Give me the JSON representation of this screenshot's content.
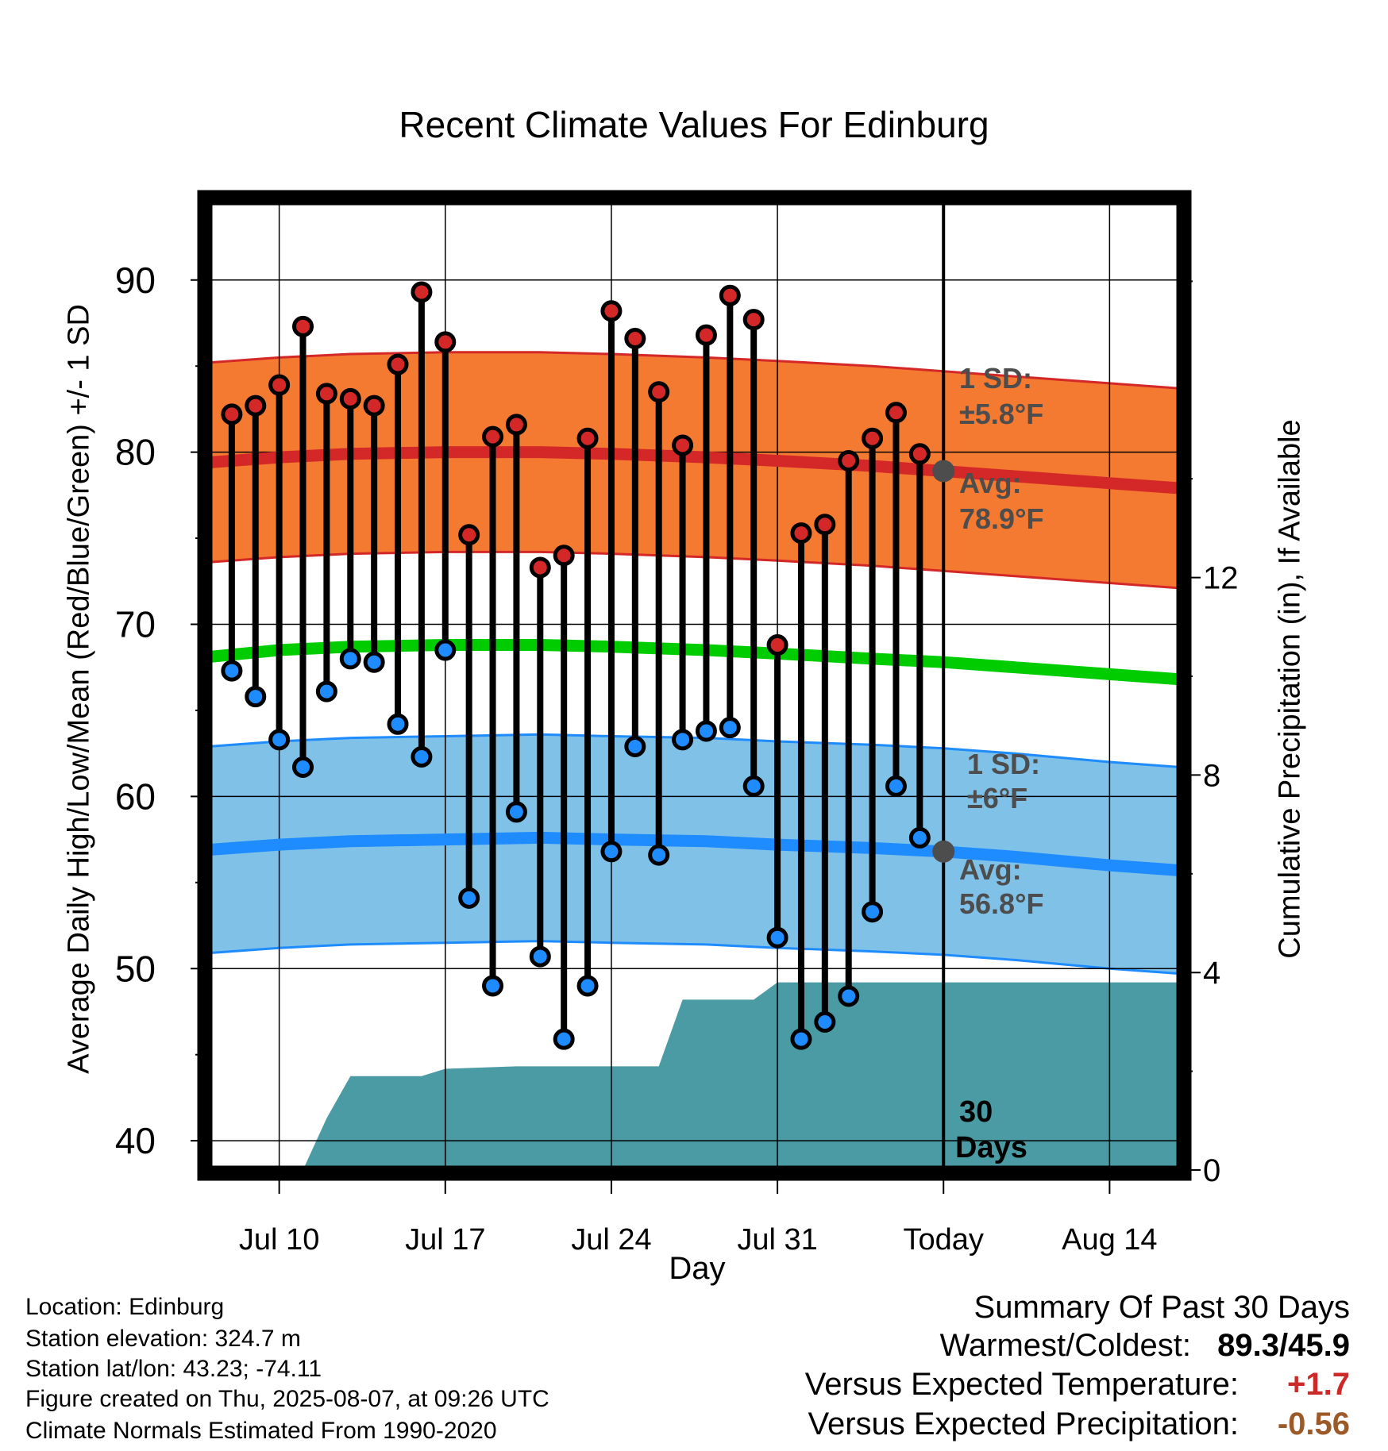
{
  "chart_data": {
    "type": "line",
    "title": "Recent Climate Values For Edinburg",
    "xlabel": "Day",
    "ylabel": "Average Daily High/Low/Mean (Red/Blue/Green) +/- 1 SD",
    "y2label": "Cumulative Precipitation (in), If Available",
    "ylim": [
      38.3,
      94.6
    ],
    "y2lim": [
      0,
      19.63
    ],
    "yticks": [
      "40",
      "50",
      "60",
      "70",
      "80",
      "90"
    ],
    "y2ticks": [
      "0",
      "4",
      "8",
      "12"
    ],
    "xlim": [
      "2025-07-07",
      "2025-08-17"
    ],
    "xticks": [
      {
        "date": "2025-07-10",
        "label": "Jul 10"
      },
      {
        "date": "2025-07-17",
        "label": "Jul 17"
      },
      {
        "date": "2025-07-24",
        "label": "Jul 24"
      },
      {
        "date": "2025-07-31",
        "label": "Jul 31"
      },
      {
        "date": "2025-08-07",
        "label": "Today"
      },
      {
        "date": "2025-08-14",
        "label": "Aug 14"
      }
    ],
    "grid": true,
    "today": "2025-08-07",
    "colors": {
      "high_band": "#f47a31",
      "high_line": "#d42828",
      "mean_line": "#00cc00",
      "low_band": "#80c1e8",
      "low_line": "#1e8cff",
      "precip": "#4a9ba3",
      "avg_marker": "#4d4d4d",
      "annotation": "#4d4d4d"
    },
    "observed": [
      {
        "date": "2025-07-08",
        "high": 82.2,
        "low": 67.3
      },
      {
        "date": "2025-07-09",
        "high": 82.7,
        "low": 65.8
      },
      {
        "date": "2025-07-10",
        "high": 83.9,
        "low": 63.3
      },
      {
        "date": "2025-07-11",
        "high": 87.3,
        "low": 61.7
      },
      {
        "date": "2025-07-12",
        "high": 83.4,
        "low": 66.1
      },
      {
        "date": "2025-07-13",
        "high": 83.1,
        "low": 68.0
      },
      {
        "date": "2025-07-14",
        "high": 82.7,
        "low": 67.8
      },
      {
        "date": "2025-07-15",
        "high": 85.1,
        "low": 64.2
      },
      {
        "date": "2025-07-16",
        "high": 89.3,
        "low": 62.3
      },
      {
        "date": "2025-07-17",
        "high": 86.4,
        "low": 68.5
      },
      {
        "date": "2025-07-18",
        "high": 75.2,
        "low": 54.1
      },
      {
        "date": "2025-07-19",
        "high": 80.9,
        "low": 49.0
      },
      {
        "date": "2025-07-20",
        "high": 81.6,
        "low": 59.1
      },
      {
        "date": "2025-07-21",
        "high": 73.3,
        "low": 50.7
      },
      {
        "date": "2025-07-22",
        "high": 74.0,
        "low": 45.9
      },
      {
        "date": "2025-07-23",
        "high": 80.8,
        "low": 49.0
      },
      {
        "date": "2025-07-24",
        "high": 88.2,
        "low": 56.8
      },
      {
        "date": "2025-07-25",
        "high": 86.6,
        "low": 62.9
      },
      {
        "date": "2025-07-26",
        "high": 83.5,
        "low": 56.6
      },
      {
        "date": "2025-07-27",
        "high": 80.4,
        "low": 63.3
      },
      {
        "date": "2025-07-28",
        "high": 86.8,
        "low": 63.8
      },
      {
        "date": "2025-07-29",
        "high": 89.1,
        "low": 64.0
      },
      {
        "date": "2025-07-30",
        "high": 87.7,
        "low": 60.6
      },
      {
        "date": "2025-07-31",
        "high": 68.8,
        "low": 51.8
      },
      {
        "date": "2025-08-01",
        "high": 75.3,
        "low": 45.9
      },
      {
        "date": "2025-08-02",
        "high": 75.8,
        "low": 46.9
      },
      {
        "date": "2025-08-03",
        "high": 79.5,
        "low": 48.4
      },
      {
        "date": "2025-08-04",
        "high": 80.8,
        "low": 53.3
      },
      {
        "date": "2025-08-05",
        "high": 82.3,
        "low": 60.6
      },
      {
        "date": "2025-08-06",
        "high": 79.9,
        "low": 57.6
      }
    ],
    "normals": [
      {
        "date": "2025-07-07",
        "high": 79.4,
        "low": 56.9,
        "mean": 68.1
      },
      {
        "date": "2025-07-10",
        "high": 79.7,
        "low": 57.2,
        "mean": 68.5
      },
      {
        "date": "2025-07-13",
        "high": 79.9,
        "low": 57.4,
        "mean": 68.7
      },
      {
        "date": "2025-07-17",
        "high": 80.0,
        "low": 57.5,
        "mean": 68.8
      },
      {
        "date": "2025-07-21",
        "high": 80.0,
        "low": 57.6,
        "mean": 68.8
      },
      {
        "date": "2025-07-24",
        "high": 79.9,
        "low": 57.5,
        "mean": 68.7
      },
      {
        "date": "2025-07-28",
        "high": 79.7,
        "low": 57.4,
        "mean": 68.5
      },
      {
        "date": "2025-07-31",
        "high": 79.5,
        "low": 57.2,
        "mean": 68.3
      },
      {
        "date": "2025-08-04",
        "high": 79.2,
        "low": 57.0,
        "mean": 68.0
      },
      {
        "date": "2025-08-07",
        "high": 78.9,
        "low": 56.8,
        "mean": 67.8
      },
      {
        "date": "2025-08-10",
        "high": 78.6,
        "low": 56.5,
        "mean": 67.5
      },
      {
        "date": "2025-08-14",
        "high": 78.2,
        "low": 56.0,
        "mean": 67.1
      },
      {
        "date": "2025-08-17",
        "high": 77.9,
        "low": 55.7,
        "mean": 66.8
      }
    ],
    "sd_high": 5.8,
    "sd_low": 6,
    "precip_cumulative": [
      {
        "date": "2025-07-11",
        "value": 0.0
      },
      {
        "date": "2025-07-12",
        "value": 1.05
      },
      {
        "date": "2025-07-13",
        "value": 1.9
      },
      {
        "date": "2025-07-14",
        "value": 1.9
      },
      {
        "date": "2025-07-16",
        "value": 1.9
      },
      {
        "date": "2025-07-17",
        "value": 2.05
      },
      {
        "date": "2025-07-20",
        "value": 2.1
      },
      {
        "date": "2025-07-26",
        "value": 2.1
      },
      {
        "date": "2025-07-27",
        "value": 3.45
      },
      {
        "date": "2025-07-30",
        "value": 3.45
      },
      {
        "date": "2025-07-31",
        "value": 3.8
      },
      {
        "date": "2025-08-17",
        "value": 3.8
      }
    ],
    "annotations": {
      "high_sd_label": "1 SD:",
      "high_sd_value": "±5.8°F",
      "high_avg_label": "Avg:",
      "high_avg_value": "78.9°F",
      "low_sd_label": "1 SD:",
      "low_sd_value": "±6°F",
      "low_avg_label": "Avg:",
      "low_avg_value": "56.8°F",
      "days_number": "30",
      "days_label": "Days"
    }
  },
  "info": {
    "location": "Location: Edinburg",
    "elevation": "Station elevation: 324.7 m",
    "latlon": "Station lat/lon: 43.23; -74.11",
    "created": "Figure created on Thu, 2025-08-07, at 09:26 UTC",
    "normals": "Climate Normals Estimated From 1990-2020"
  },
  "summary": {
    "title": "Summary Of Past 30 Days",
    "warm_label": "Warmest/Coldest:",
    "warm_value": "89.3/45.9",
    "temp_label": "Versus Expected Temperature:",
    "temp_value": "+1.7",
    "precip_label": "Versus Expected Precipitation:",
    "precip_value": "-0.56"
  }
}
